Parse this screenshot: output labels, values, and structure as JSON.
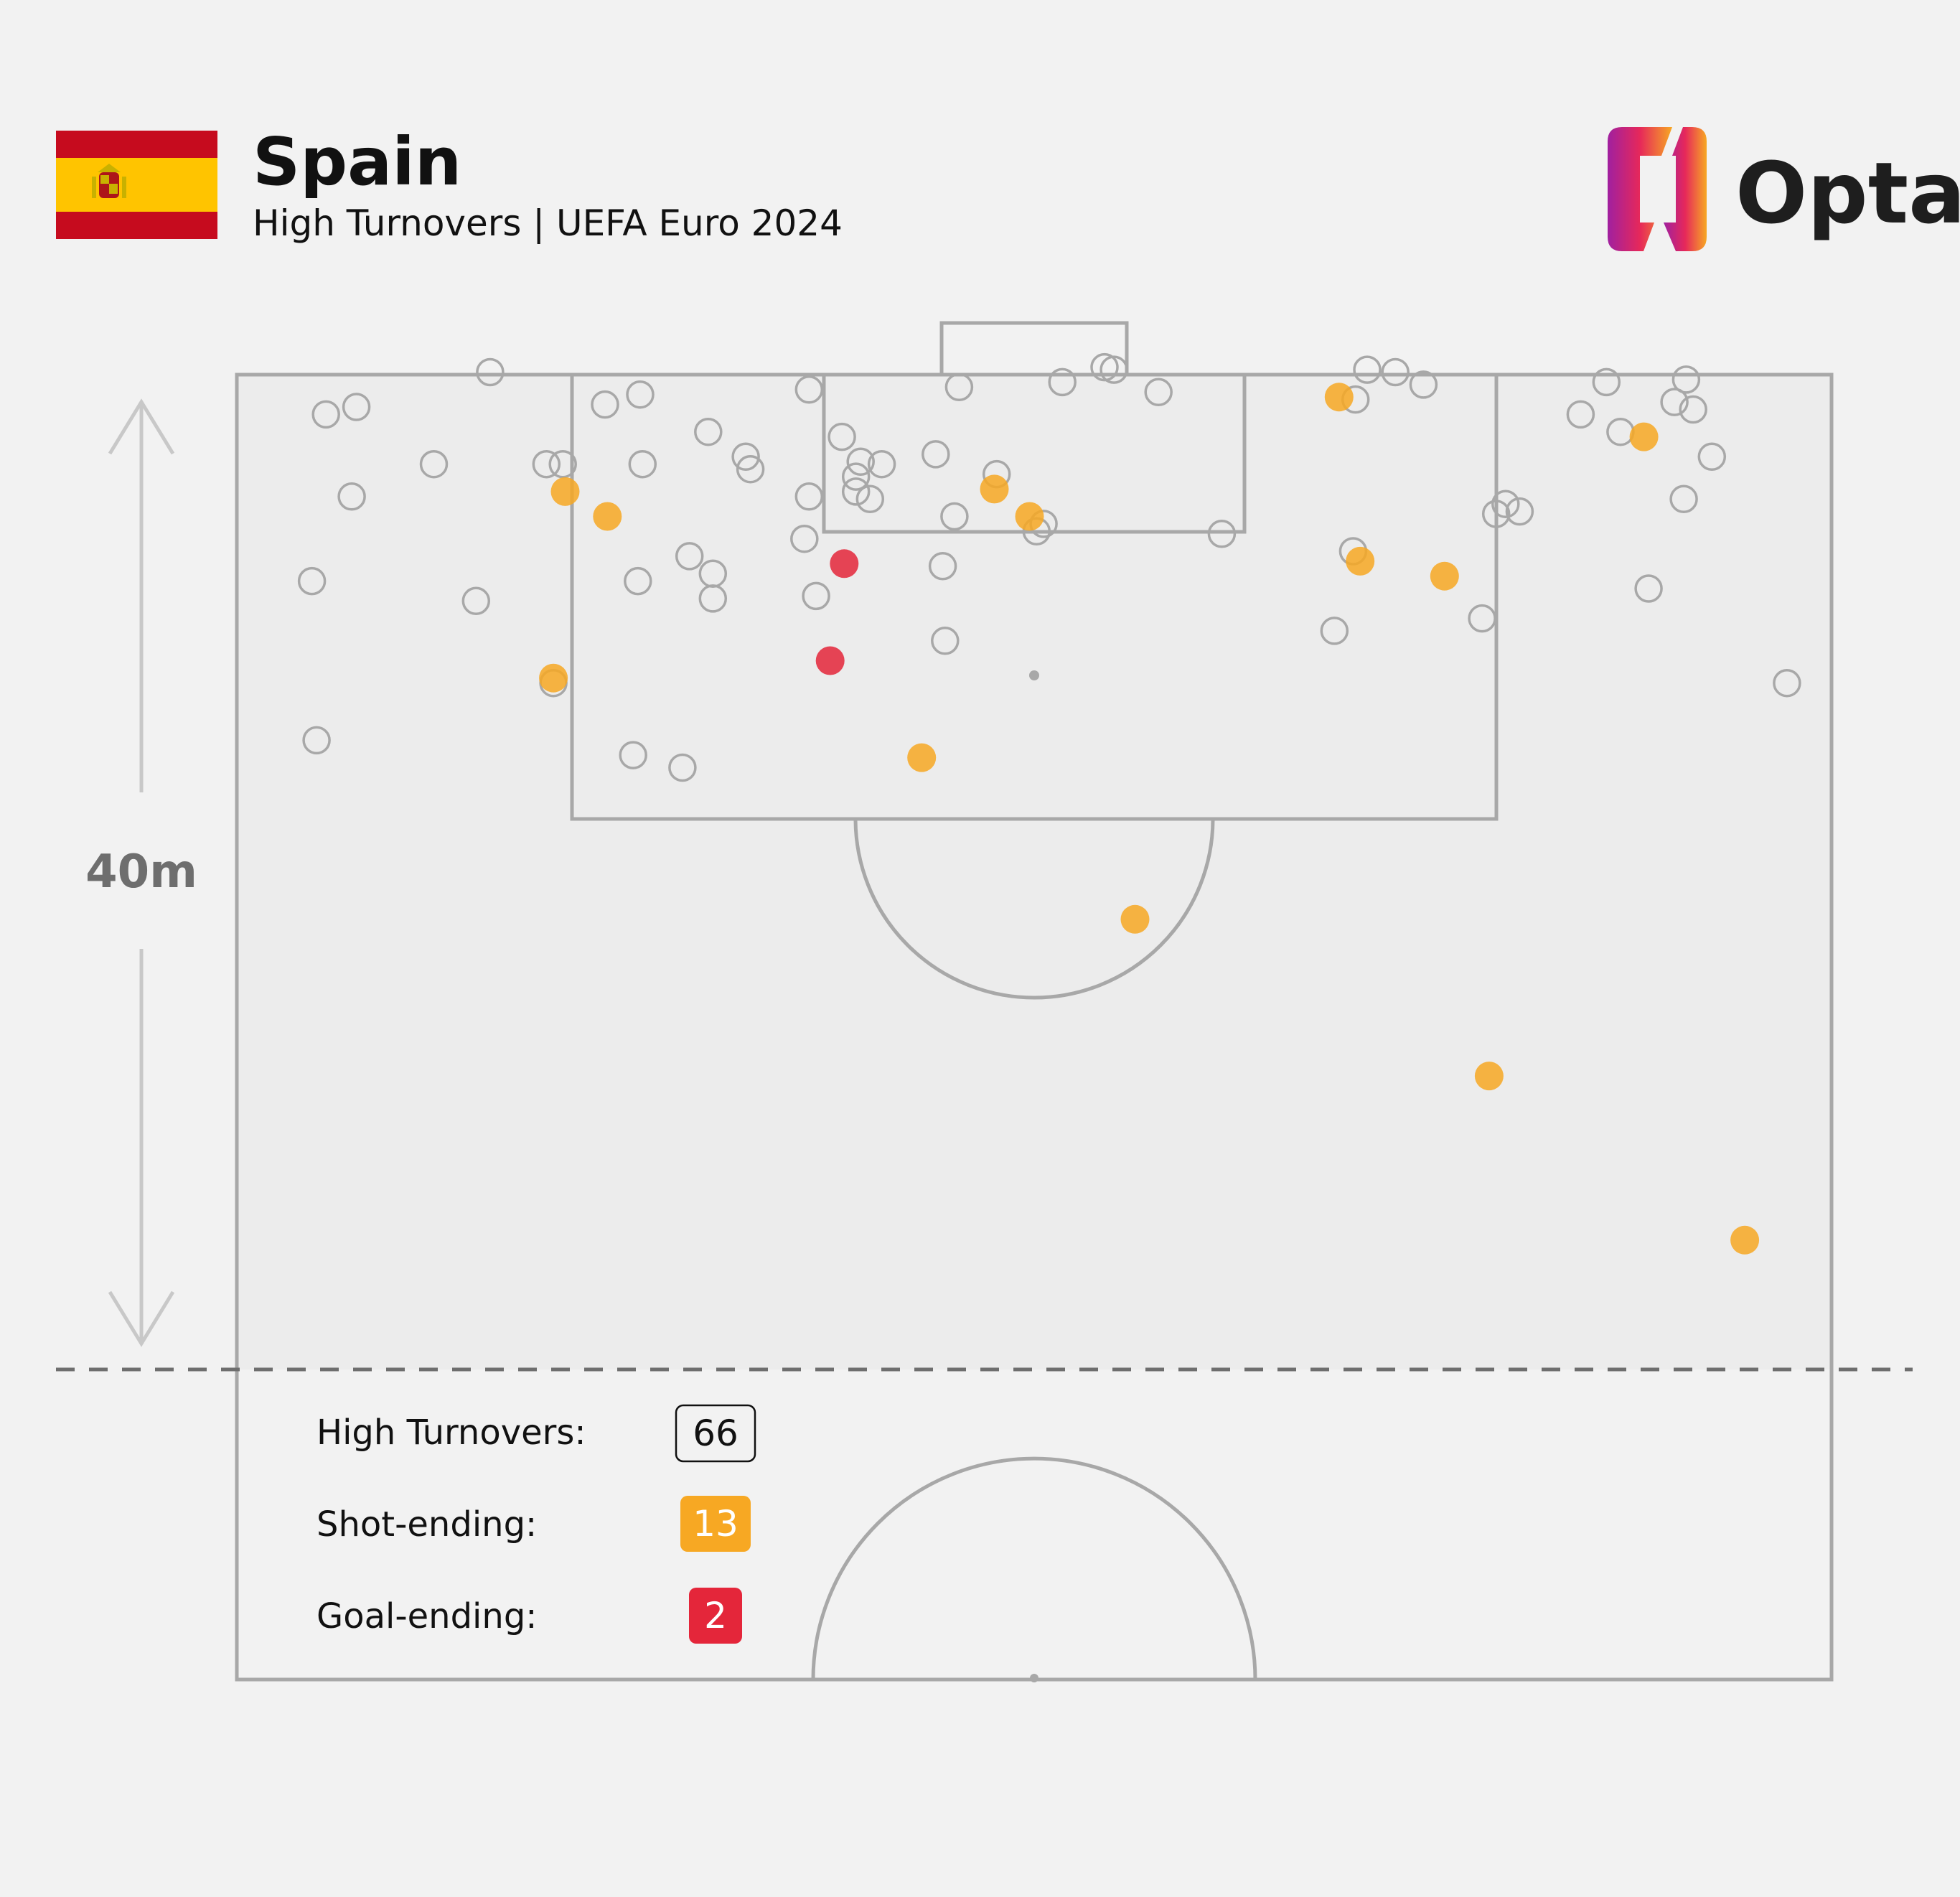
{
  "header": {
    "team": "Spain",
    "subtitle": "High Turnovers | UEFA Euro 2024",
    "brand": "Opta"
  },
  "flag": {
    "colors": {
      "red": "#c60b1e",
      "yellow": "#ffc400"
    }
  },
  "scale": {
    "label": "40m"
  },
  "legend": {
    "items": [
      {
        "label": "High Turnovers:",
        "value": "66",
        "style": "outline"
      },
      {
        "label": "Shot-ending:",
        "value": "13",
        "color": "#f7a823"
      },
      {
        "label": "Goal-ending:",
        "value": "2",
        "color": "#e4263a"
      }
    ]
  },
  "colors": {
    "background": "#f2f2f2",
    "pitch_zone": "#ececec",
    "lines": "#a8a8a8",
    "turnover_outline": "#a8a8a8",
    "shot_ending": "#f7a823",
    "goal_ending": "#e4263a",
    "text_dark": "#111111",
    "text_scale": "#6e6e6e"
  },
  "chart_data": {
    "type": "scatter",
    "title": "Spain",
    "subtitle": "High Turnovers | UEFA Euro 2024",
    "xlabel": "",
    "ylabel": "",
    "x_unit": "metres across pitch width (0 = left touchline)",
    "y_unit": "metres from opponent goal line",
    "xlim": [
      0,
      68
    ],
    "ylim": [
      0,
      40
    ],
    "threshold_line_m": 40,
    "counts": {
      "high_turnovers": 66,
      "shot_ending": 13,
      "goal_ending": 2
    },
    "series": [
      {
        "name": "High Turnovers",
        "style": "outline",
        "points": [
          [
            13.5,
            12.4
          ],
          [
            3.4,
            14.7
          ],
          [
            16.9,
            15.3
          ],
          [
            19.0,
            15.8
          ],
          [
            10.2,
            9.1
          ],
          [
            17.1,
            8.3
          ],
          [
            20.3,
            9.0
          ],
          [
            20.3,
            8.0
          ],
          [
            19.3,
            7.3
          ],
          [
            4.9,
            4.9
          ],
          [
            8.4,
            3.6
          ],
          [
            13.2,
            3.6
          ],
          [
            13.9,
            3.6
          ],
          [
            17.3,
            3.6
          ],
          [
            21.9,
            3.8
          ],
          [
            24.4,
            4.9
          ],
          [
            3.8,
            1.6
          ],
          [
            5.1,
            1.3
          ],
          [
            20.1,
            2.3
          ],
          [
            21.7,
            3.3
          ],
          [
            15.7,
            1.2
          ],
          [
            17.2,
            0.8
          ],
          [
            24.4,
            0.6
          ],
          [
            30.8,
            0.5
          ],
          [
            30.2,
            10.7
          ],
          [
            30.1,
            7.7
          ],
          [
            24.2,
            6.6
          ],
          [
            34.1,
            6.3
          ],
          [
            34.4,
            6.0
          ],
          [
            42.0,
            6.4
          ],
          [
            39.3,
            0.7
          ],
          [
            35.2,
            0.3
          ],
          [
            10.8,
            -0.1
          ],
          [
            37.4,
            -0.2
          ],
          [
            37.0,
            -0.3
          ],
          [
            46.8,
            10.3
          ],
          [
            53.1,
            9.8
          ],
          [
            47.6,
            7.1
          ],
          [
            53.7,
            5.6
          ],
          [
            54.1,
            5.2
          ],
          [
            54.7,
            5.5
          ],
          [
            60.2,
            8.6
          ],
          [
            61.7,
            5.0
          ],
          [
            62.9,
            3.3
          ],
          [
            57.3,
            1.6
          ],
          [
            66.1,
            12.4
          ],
          [
            48.2,
            -0.2
          ],
          [
            49.4,
            -0.1
          ],
          [
            50.6,
            0.4
          ],
          [
            47.7,
            1.0
          ],
          [
            59.0,
            2.3
          ],
          [
            62.1,
            1.4
          ],
          [
            61.3,
            1.1
          ],
          [
            61.8,
            0.2
          ],
          [
            58.4,
            0.3
          ],
          [
            3.2,
            8.3
          ],
          [
            24.7,
            8.9
          ],
          [
            26.4,
            4.7
          ],
          [
            26.4,
            4.1
          ],
          [
            26.6,
            3.5
          ],
          [
            25.8,
            2.5
          ],
          [
            29.8,
            3.2
          ],
          [
            27.5,
            3.6
          ],
          [
            27.0,
            5.0
          ],
          [
            32.4,
            4.0
          ],
          [
            30.6,
            5.7
          ]
        ]
      },
      {
        "name": "Shot-ending",
        "color": "#f7a823",
        "points": [
          [
            64.3,
            34.8
          ],
          [
            53.4,
            28.2
          ],
          [
            38.3,
            21.9
          ],
          [
            29.2,
            15.4
          ],
          [
            13.5,
            12.2
          ],
          [
            15.8,
            5.7
          ],
          [
            33.8,
            5.7
          ],
          [
            32.3,
            4.6
          ],
          [
            47.9,
            7.5
          ],
          [
            51.5,
            8.1
          ],
          [
            47.0,
            0.9
          ],
          [
            60.0,
            2.5
          ],
          [
            14.0,
            4.7
          ]
        ]
      },
      {
        "name": "Goal-ending",
        "color": "#e4263a",
        "points": [
          [
            25.3,
            11.5
          ],
          [
            25.9,
            7.6
          ]
        ]
      }
    ]
  }
}
